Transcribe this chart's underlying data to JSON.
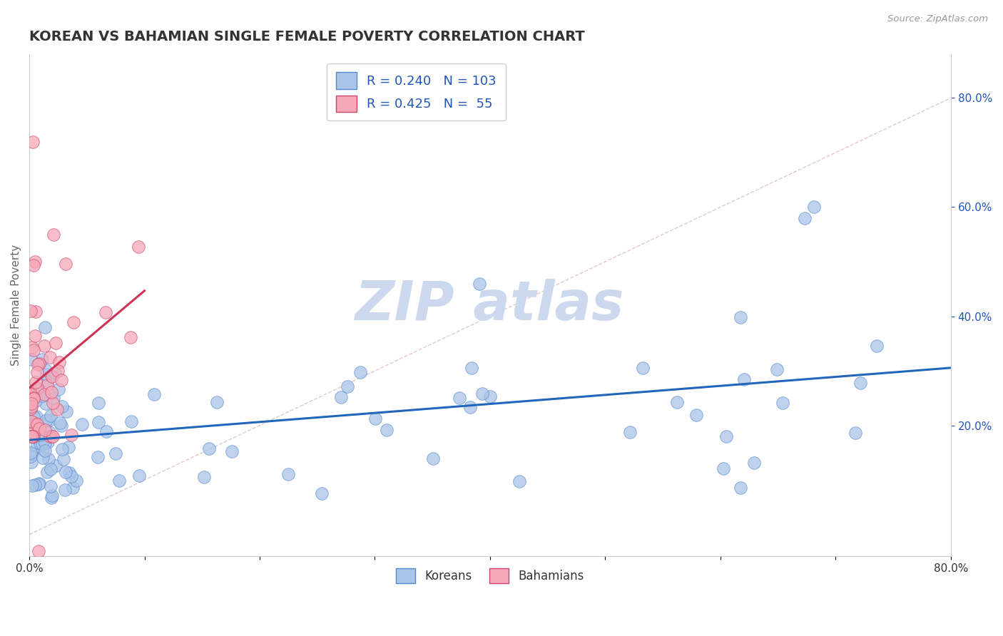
{
  "title": "KOREAN VS BAHAMIAN SINGLE FEMALE POVERTY CORRELATION CHART",
  "source": "Source: ZipAtlas.com",
  "ylabel": "Single Female Poverty",
  "right_yticklabels": [
    "20.0%",
    "40.0%",
    "60.0%",
    "80.0%"
  ],
  "right_ytick_vals": [
    0.2,
    0.4,
    0.6,
    0.8
  ],
  "xlim": [
    0.0,
    0.8
  ],
  "ylim": [
    -0.04,
    0.88
  ],
  "korean_R": 0.24,
  "korean_N": 103,
  "bahamian_R": 0.425,
  "bahamian_N": 55,
  "korean_color": "#aac4e8",
  "bahamian_color": "#f5a8b8",
  "korean_edge_color": "#5588cc",
  "bahamian_edge_color": "#cc4466",
  "korean_line_color": "#2266bb",
  "bahamian_line_color": "#cc3355",
  "diagonal_color": "#ddbbbb",
  "watermark_color": "#ccd8ee",
  "background_color": "#ffffff",
  "grid_color": "#cccccc",
  "legend_text_color": "#2255bb",
  "title_color": "#333333"
}
